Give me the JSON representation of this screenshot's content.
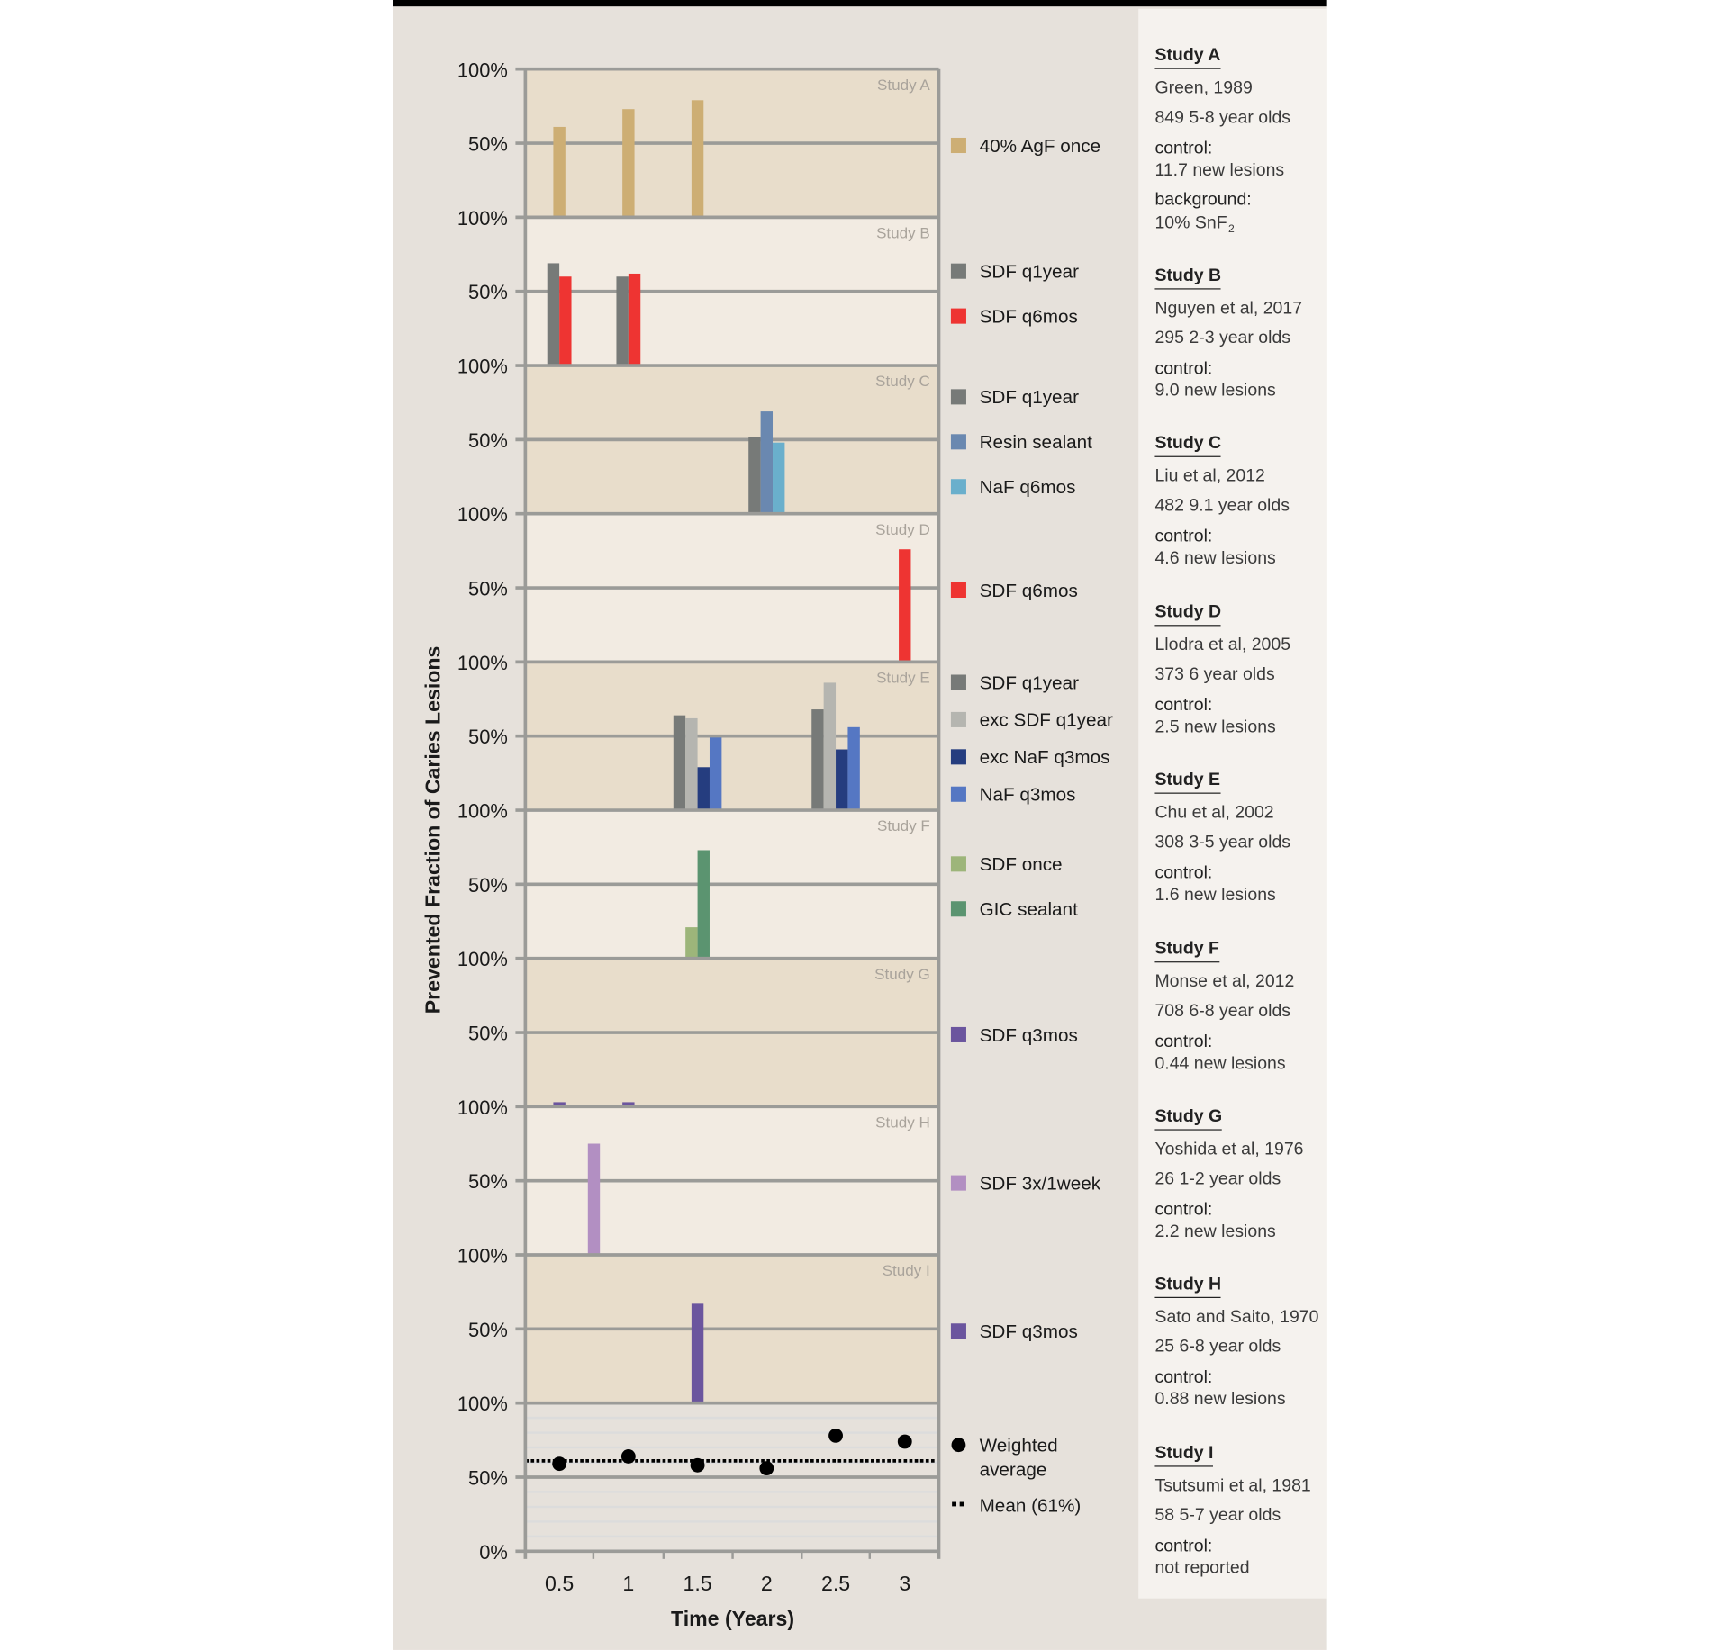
{
  "chart_data": {
    "type": "bar",
    "ylabel": "Prevented Fraction of Caries Lesions",
    "xlabel": "Time (Years)",
    "x_ticks": [
      0.5,
      1,
      1.5,
      2,
      2.5,
      3
    ],
    "x_tick_labels": [
      "0.5",
      "1",
      "1.5",
      "2",
      "2.5",
      "3"
    ],
    "xlim": [
      0.25,
      3.25
    ],
    "y_tick_labels": {
      "top": "100%",
      "mid": "50%",
      "bottom": "0%"
    },
    "ylim": [
      0,
      100
    ],
    "panels": [
      {
        "name": "Study A",
        "bg": "#e8ddcb",
        "legend": [
          {
            "label": "40% AgF once",
            "color": "#cdae74"
          }
        ],
        "bars": [
          {
            "x": 0.5,
            "series": [
              {
                "label": "40% AgF once",
                "value": 61
              }
            ]
          },
          {
            "x": 1,
            "series": [
              {
                "label": "40% AgF once",
                "value": 73
              }
            ]
          },
          {
            "x": 1.5,
            "series": [
              {
                "label": "40% AgF once",
                "value": 79
              }
            ]
          }
        ]
      },
      {
        "name": "Study B",
        "bg": "#f2ebe2",
        "legend": [
          {
            "label": "SDF q1year",
            "color": "#777a78"
          },
          {
            "label": "SDF q6mos",
            "color": "#ee3432"
          }
        ],
        "bars": [
          {
            "x": 0.5,
            "series": [
              {
                "label": "SDF q1year",
                "value": 69
              },
              {
                "label": "SDF q6mos",
                "value": 60
              }
            ]
          },
          {
            "x": 1,
            "series": [
              {
                "label": "SDF q1year",
                "value": 60
              },
              {
                "label": "SDF q6mos",
                "value": 62
              }
            ]
          }
        ]
      },
      {
        "name": "Study C",
        "bg": "#e8ddcb",
        "legend": [
          {
            "label": "SDF q1year",
            "color": "#777a78"
          },
          {
            "label": "Resin sealant",
            "color": "#6a88b0"
          },
          {
            "label": "NaF q6mos",
            "color": "#6aafcc"
          }
        ],
        "bars": [
          {
            "x": 2,
            "series": [
              {
                "label": "SDF q1year",
                "value": 52
              },
              {
                "label": "Resin sealant",
                "value": 69
              },
              {
                "label": "NaF q6mos",
                "value": 48
              }
            ]
          }
        ]
      },
      {
        "name": "Study D",
        "bg": "#f2ebe2",
        "legend": [
          {
            "label": "SDF q6mos",
            "color": "#ee3432"
          }
        ],
        "bars": [
          {
            "x": 3,
            "series": [
              {
                "label": "SDF q6mos",
                "value": 76
              }
            ]
          }
        ]
      },
      {
        "name": "Study E",
        "bg": "#e8ddcb",
        "legend": [
          {
            "label": "SDF q1year",
            "color": "#777a78"
          },
          {
            "label": "exc SDF q1year",
            "color": "#b5b5b0"
          },
          {
            "label": "exc NaF q3mos",
            "color": "#253d7f"
          },
          {
            "label": "NaF q3mos",
            "color": "#5577c3"
          }
        ],
        "bars": [
          {
            "x": 1.5,
            "series": [
              {
                "label": "SDF q1year",
                "value": 64
              },
              {
                "label": "exc SDF q1year",
                "value": 62
              },
              {
                "label": "exc NaF q3mos",
                "value": 29
              },
              {
                "label": "NaF q3mos",
                "value": 49
              }
            ]
          },
          {
            "x": 2.5,
            "series": [
              {
                "label": "SDF q1year",
                "value": 68
              },
              {
                "label": "exc SDF q1year",
                "value": 86
              },
              {
                "label": "exc NaF q3mos",
                "value": 41
              },
              {
                "label": "NaF q3mos",
                "value": 56
              }
            ]
          }
        ]
      },
      {
        "name": "Study F",
        "bg": "#f2ebe2",
        "legend": [
          {
            "label": "SDF once",
            "color": "#9db57a"
          },
          {
            "label": "GIC sealant",
            "color": "#5b9470"
          }
        ],
        "bars": [
          {
            "x": 1.5,
            "series": [
              {
                "label": "SDF once",
                "value": 21
              },
              {
                "label": "GIC sealant",
                "value": 73
              }
            ]
          }
        ]
      },
      {
        "name": "Study G",
        "bg": "#e8ddcb",
        "legend": [
          {
            "label": "SDF q3mos",
            "color": "#6b559e"
          }
        ],
        "bars": [
          {
            "x": 0.5,
            "series": [
              {
                "label": "SDF q3mos",
                "value": 3
              }
            ]
          },
          {
            "x": 1,
            "series": [
              {
                "label": "SDF q3mos",
                "value": 3
              }
            ]
          }
        ]
      },
      {
        "name": "Study H",
        "bg": "#f2ebe2",
        "legend": [
          {
            "label": "SDF 3x/1week",
            "color": "#b28fc2"
          }
        ],
        "bars": [
          {
            "x": 0.75,
            "series": [
              {
                "label": "SDF 3x/1week",
                "value": 75
              }
            ]
          }
        ]
      },
      {
        "name": "Study I",
        "bg": "#e8ddcb",
        "legend": [
          {
            "label": "SDF q3mos",
            "color": "#6b559e"
          }
        ],
        "bars": [
          {
            "x": 1.5,
            "series": [
              {
                "label": "SDF q3mos",
                "value": 67
              }
            ]
          }
        ]
      }
    ],
    "weighted": {
      "legend_point": "Weighted average",
      "legend_point_lines": [
        "Weighted",
        "average"
      ],
      "legend_mean": "Mean (61%)",
      "mean": 61,
      "points": [
        {
          "x": 0.5,
          "y": 59
        },
        {
          "x": 1,
          "y": 64
        },
        {
          "x": 1.5,
          "y": 58
        },
        {
          "x": 2,
          "y": 56
        },
        {
          "x": 2.5,
          "y": 78
        },
        {
          "x": 3,
          "y": 74
        }
      ]
    }
  },
  "studies": [
    {
      "title": "Study A",
      "citation": "Green, 1989",
      "sample": "849 5-8 year olds",
      "control_label": "control:",
      "control": "11.7 new lesions",
      "background_label": "background:",
      "background": "10% SnF",
      "background_sub": "2"
    },
    {
      "title": "Study B",
      "citation": "Nguyen et al, 2017",
      "sample": "295 2-3 year olds",
      "control_label": "control:",
      "control": "9.0 new lesions"
    },
    {
      "title": "Study C",
      "citation": "Liu et al, 2012",
      "sample": "482 9.1 year olds",
      "control_label": "control:",
      "control": "4.6 new lesions"
    },
    {
      "title": "Study D",
      "citation": "Llodra et al, 2005",
      "sample": "373 6 year olds",
      "control_label": "control:",
      "control": "2.5 new lesions"
    },
    {
      "title": "Study E",
      "citation": "Chu et al, 2002",
      "sample": "308 3-5 year olds",
      "control_label": "control:",
      "control": "1.6 new lesions"
    },
    {
      "title": "Study F",
      "citation": "Monse et al, 2012",
      "sample": "708 6-8 year olds",
      "control_label": "control:",
      "control": "0.44 new lesions"
    },
    {
      "title": "Study G",
      "citation": "Yoshida et al, 1976",
      "sample": "26 1-2 year olds",
      "control_label": "control:",
      "control": "2.2 new lesions"
    },
    {
      "title": "Study H",
      "citation": "Sato and Saito, 1970",
      "sample": "25 6-8 year olds",
      "control_label": "control:",
      "control": "0.88 new lesions"
    },
    {
      "title": "Study I",
      "citation": "Tsutsumi et al, 1981",
      "sample": "58 5-7 year olds",
      "control_label": "control:",
      "control": "not reported"
    }
  ]
}
